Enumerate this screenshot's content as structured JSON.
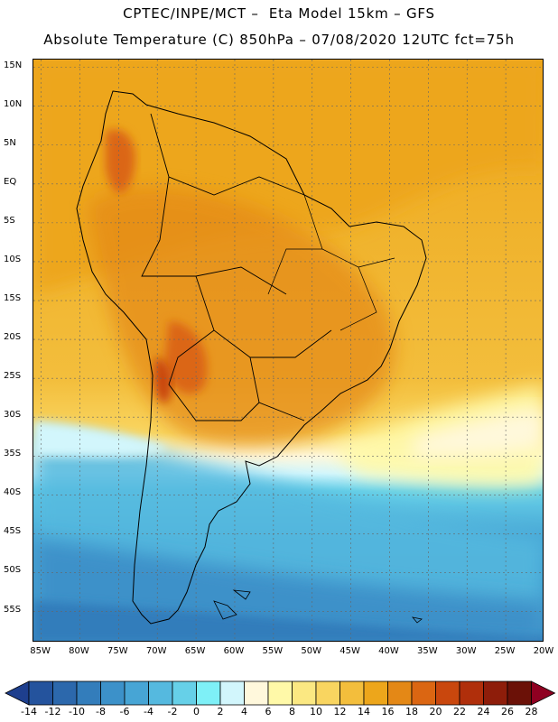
{
  "header": {
    "line1": "CPTEC/INPE/MCT –  Eta Model 15km – GFS",
    "line2": "Absolute Temperature (C) 850hPa – 07/08/2020 12UTC fct=75h"
  },
  "map": {
    "lat_labels": [
      "15N",
      "10N",
      "5N",
      "EQ",
      "5S",
      "10S",
      "15S",
      "20S",
      "25S",
      "30S",
      "35S",
      "40S",
      "45S",
      "50S",
      "55S"
    ],
    "lat_values": [
      15,
      10,
      5,
      0,
      -5,
      -10,
      -15,
      -20,
      -25,
      -30,
      -35,
      -40,
      -45,
      -50,
      -55
    ],
    "lon_labels": [
      "85W",
      "80W",
      "75W",
      "70W",
      "65W",
      "60W",
      "55W",
      "50W",
      "45W",
      "40W",
      "35W",
      "30W",
      "25W",
      "20W"
    ],
    "lon_values": [
      -85,
      -80,
      -75,
      -70,
      -65,
      -60,
      -55,
      -50,
      -45,
      -40,
      -35,
      -30,
      -25,
      -20
    ],
    "extent": {
      "lon_min": -86,
      "lon_max": -20,
      "lat_min": -59,
      "lat_max": 16
    }
  },
  "colorbar": {
    "labels": [
      "-14",
      "-12",
      "-10",
      "-8",
      "-6",
      "-4",
      "-2",
      "0",
      "2",
      "4",
      "6",
      "8",
      "10",
      "12",
      "14",
      "16",
      "18",
      "20",
      "22",
      "24",
      "26",
      "28"
    ],
    "colors": [
      "#1e3f8e",
      "#24539d",
      "#2c68ac",
      "#337dbb",
      "#3c91c9",
      "#47a5d5",
      "#55b9df",
      "#66d0e8",
      "#7ef0f7",
      "#d2f6fc",
      "#fff8dc",
      "#fff9a8",
      "#fbe882",
      "#f9d560",
      "#f3be3c",
      "#eda61b",
      "#e48816",
      "#db6612",
      "#c9470d",
      "#b02f0b",
      "#8e1d0a",
      "#6b1107",
      "#8f0021"
    ]
  }
}
